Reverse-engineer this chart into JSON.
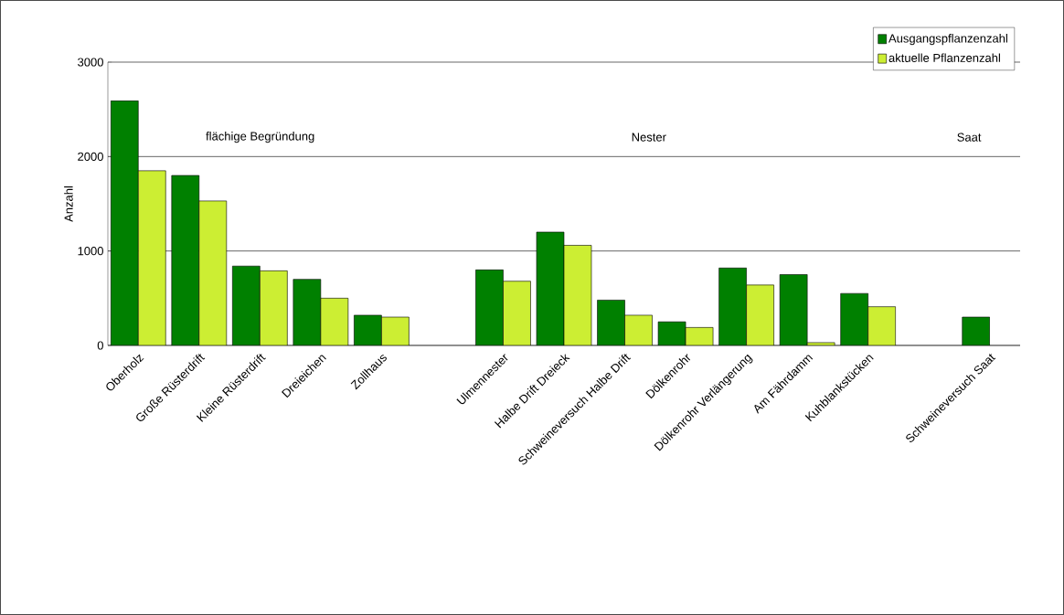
{
  "chart_data": {
    "type": "bar",
    "ylabel": "Anzahl",
    "categories": [
      "Oberholz",
      "Große Rüsterdrift",
      "Kleine Rüsterdrift",
      "Dreieichen",
      "Zollhaus",
      null,
      "Ulmennester",
      "Halbe Drift Dreieck",
      "Schweineversuch Halbe Drift",
      "Dölkenrohr",
      "Dölkenrohr Verlängerung",
      "Am Fährdamm",
      "Kuhblankstücken",
      null,
      "Schweineversuch Saat"
    ],
    "series": [
      {
        "name": "Ausgangspflanzenzahl",
        "color": "#008000",
        "values": [
          2590,
          1800,
          840,
          700,
          320,
          null,
          800,
          1200,
          480,
          250,
          820,
          750,
          550,
          null,
          300
        ]
      },
      {
        "name": "aktuelle Pflanzenzahl",
        "color": "#ccee33",
        "values": [
          1850,
          1530,
          790,
          500,
          300,
          null,
          680,
          1060,
          320,
          190,
          640,
          30,
          410,
          null,
          null
        ]
      }
    ],
    "ylim": [
      0,
      3000
    ],
    "yticks": [
      0,
      1000,
      2000,
      3000
    ],
    "grid": "y",
    "legend": "top right",
    "annotations": [
      "flächige Begründung",
      "Nester",
      "Saat"
    ]
  }
}
